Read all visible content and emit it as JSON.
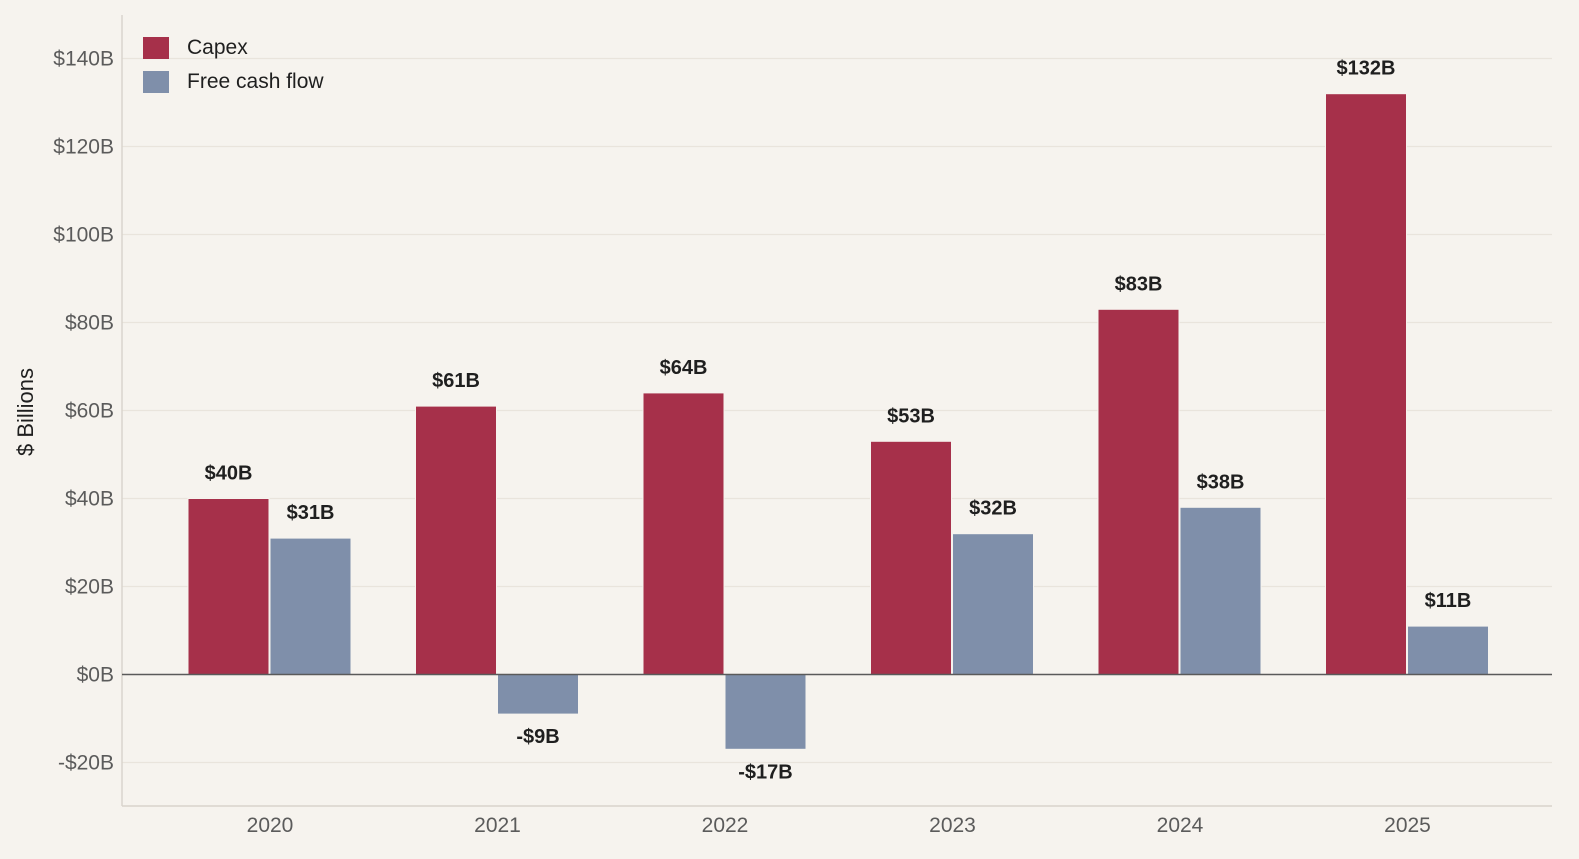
{
  "chart_data": {
    "type": "bar",
    "title": "",
    "xlabel": "",
    "ylabel": "$ Billions",
    "categories": [
      "2020",
      "2021",
      "2022",
      "2023",
      "2024",
      "2025"
    ],
    "series": [
      {
        "name": "Capex",
        "color": "#a6304a",
        "values": [
          40,
          61,
          64,
          53,
          83,
          132
        ],
        "labels": [
          "$40B",
          "$61B",
          "$64B",
          "$53B",
          "$83B",
          "$132B"
        ]
      },
      {
        "name": "Free cash flow",
        "color": "#7f8faa",
        "values": [
          31,
          -9,
          -17,
          32,
          38,
          11
        ],
        "labels": [
          "$31B",
          "-$9B",
          "-$17B",
          "$32B",
          "$38B",
          "$11B"
        ]
      }
    ],
    "ylim": [
      -30,
      150
    ],
    "yticks": [
      -20,
      0,
      20,
      40,
      60,
      80,
      100,
      120,
      140
    ],
    "ytick_labels": [
      "-$20B",
      "$0B",
      "$20B",
      "$40B",
      "$60B",
      "$80B",
      "$100B",
      "$120B",
      "$140B"
    ],
    "grid": "horizontal",
    "legend_position": "top-left"
  }
}
